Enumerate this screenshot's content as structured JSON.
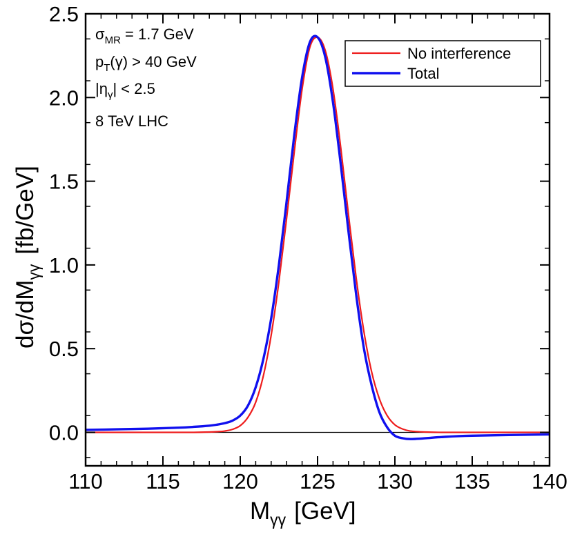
{
  "chart_data": {
    "type": "line",
    "title": "",
    "xlabel": {
      "main": "M",
      "sub": "γγ",
      "unit": "[GeV]"
    },
    "ylabel": {
      "prefix": "dσ/dM",
      "sub": "γγ",
      "unit": "[fb/GeV]"
    },
    "xlim": [
      110,
      140
    ],
    "ylim": [
      -0.2,
      2.5
    ],
    "xticks": [
      110,
      115,
      120,
      125,
      130,
      135,
      140
    ],
    "yticks": [
      0.0,
      0.5,
      1.0,
      1.5,
      2.0,
      2.5
    ],
    "x_tick_labels": [
      "110",
      "115",
      "120",
      "125",
      "130",
      "135",
      "140"
    ],
    "y_tick_labels": [
      "0.0",
      "0.5",
      "1.0",
      "1.5",
      "2.0",
      "2.5"
    ],
    "grid": false,
    "zero_line": true,
    "legend_position": "top-right",
    "annotations": {
      "sigma_mr": {
        "main": "σ",
        "sub": "MR",
        "rest": " = 1.7 GeV"
      },
      "pt_cut": {
        "main": "p",
        "sub": "T",
        "rest": "(γ) > 40 GeV"
      },
      "eta_cut": {
        "pre": "|η",
        "sub": "γ",
        "rest": "| < 2.5"
      },
      "collider": "8 TeV LHC"
    },
    "series": [
      {
        "name": "No interference",
        "color": "#ee1c1c",
        "x": [
          110,
          112,
          114,
          116,
          117,
          118,
          118.5,
          119,
          119.5,
          120,
          120.5,
          121,
          121.5,
          122,
          122.5,
          123,
          123.5,
          124,
          124.5,
          125,
          125.5,
          126,
          126.5,
          127,
          127.5,
          128,
          128.5,
          129,
          129.5,
          130,
          130.5,
          131,
          132,
          133,
          135,
          140
        ],
        "values": [
          0.0,
          0.0,
          0.0,
          0.0,
          0.0,
          0.002,
          0.004,
          0.008,
          0.018,
          0.04,
          0.09,
          0.18,
          0.34,
          0.58,
          0.9,
          1.28,
          1.68,
          2.05,
          2.3,
          2.36,
          2.28,
          2.05,
          1.7,
          1.3,
          0.92,
          0.6,
          0.36,
          0.2,
          0.1,
          0.045,
          0.02,
          0.008,
          0.002,
          0.0,
          0.0,
          0.0
        ]
      },
      {
        "name": "Total",
        "color": "#1010ee",
        "x": [
          110,
          112,
          114,
          116,
          117,
          118,
          118.5,
          119,
          119.5,
          120,
          120.5,
          121,
          121.5,
          122,
          122.5,
          123,
          123.5,
          124,
          124.5,
          125,
          125.5,
          126,
          126.5,
          127,
          127.5,
          128,
          128.5,
          129,
          129.5,
          130,
          130.5,
          131,
          132,
          133,
          135,
          140
        ],
        "values": [
          0.015,
          0.018,
          0.022,
          0.028,
          0.033,
          0.04,
          0.046,
          0.055,
          0.07,
          0.1,
          0.16,
          0.27,
          0.44,
          0.68,
          1.0,
          1.38,
          1.78,
          2.12,
          2.33,
          2.36,
          2.24,
          1.97,
          1.6,
          1.2,
          0.82,
          0.5,
          0.28,
          0.12,
          0.03,
          -0.02,
          -0.035,
          -0.04,
          -0.035,
          -0.028,
          -0.02,
          -0.012
        ]
      }
    ]
  }
}
